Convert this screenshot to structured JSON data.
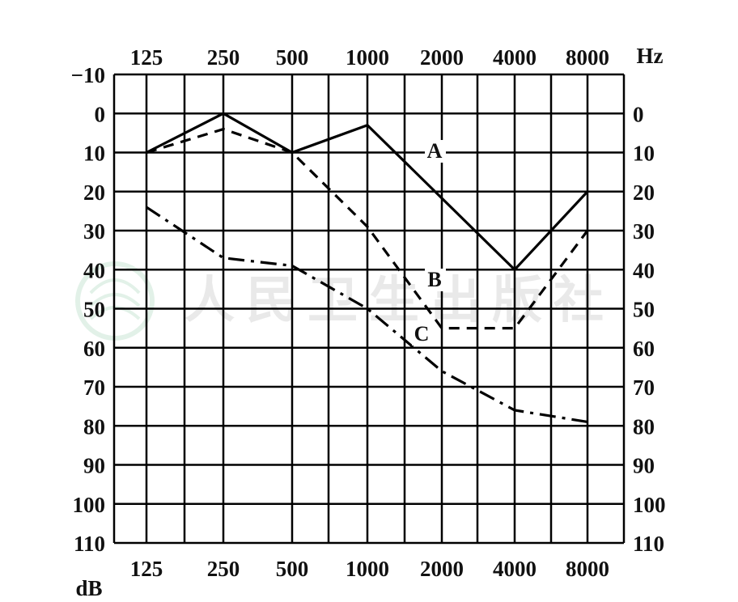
{
  "chart_data": {
    "type": "line",
    "title": "",
    "x_ticks_top": [
      "125",
      "250",
      "500",
      "1000",
      "2000",
      "4000",
      "8000"
    ],
    "x_ticks_bottom": [
      "125",
      "250",
      "500",
      "1000",
      "2000",
      "4000",
      "8000"
    ],
    "x_unit": "Hz",
    "y_unit": "dB",
    "y_ticks_left": [
      "−10",
      "0",
      "10",
      "20",
      "30",
      "40",
      "50",
      "60",
      "70",
      "80",
      "90",
      "100",
      "110"
    ],
    "y_ticks_right": [
      "0",
      "10",
      "20",
      "30",
      "40",
      "50",
      "60",
      "70",
      "80",
      "90",
      "100",
      "110"
    ],
    "ylim": [
      -10,
      110
    ],
    "y_inverted": true,
    "grid": true,
    "series": [
      {
        "name": "A",
        "style": "solid",
        "x": [
          125,
          250,
          500,
          1000,
          4000,
          8000
        ],
        "values": [
          10,
          0,
          10,
          3,
          40,
          20
        ]
      },
      {
        "name": "B",
        "style": "dashed",
        "x": [
          125,
          250,
          500,
          1000,
          2000,
          4000,
          8000
        ],
        "values": [
          10,
          4,
          10,
          29,
          55,
          55,
          30
        ]
      },
      {
        "name": "C",
        "style": "dash-dot",
        "x": [
          125,
          250,
          500,
          1000,
          2000,
          4000,
          8000
        ],
        "values": [
          24,
          37,
          39,
          50,
          66,
          76,
          79
        ]
      }
    ]
  },
  "watermark": {
    "text": "人民卫生出版社",
    "logo": "publisher-seal-icon"
  }
}
